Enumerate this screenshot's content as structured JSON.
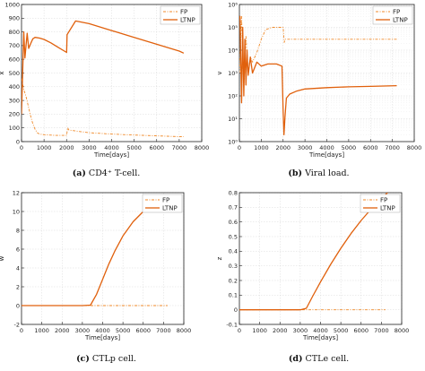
{
  "colors": {
    "fp": "#f08a2a",
    "ltnp": "#e0600c",
    "axis": "#222222",
    "grid": "#d9d9d9"
  },
  "captions": [
    {
      "tag": "(a)",
      "text": "CD4⁺ T-cell."
    },
    {
      "tag": "(b)",
      "text": "Viral load."
    },
    {
      "tag": "(c)",
      "text": "CTLp cell."
    },
    {
      "tag": "(d)",
      "text": "CTLe cell."
    }
  ],
  "chart_data": [
    {
      "type": "line",
      "xlabel": "Time[days]",
      "ylabel": "x",
      "xlim": [
        0,
        8000
      ],
      "ylim": [
        0,
        1000
      ],
      "yscale": "linear",
      "grid": true,
      "legend": "top-right",
      "xticks": [
        0,
        1000,
        2000,
        3000,
        4000,
        5000,
        6000,
        7000,
        8000
      ],
      "yticks": [
        0,
        100,
        200,
        300,
        400,
        500,
        600,
        700,
        800,
        900,
        1000
      ],
      "series": [
        {
          "name": "FP",
          "style": "dashdot",
          "x": [
            0,
            100,
            200,
            300,
            400,
            500,
            600,
            700,
            800,
            1000,
            1500,
            2000,
            2050,
            2100,
            2500,
            3000,
            4000,
            5000,
            6000,
            7000,
            7200
          ],
          "y": [
            460,
            380,
            330,
            260,
            190,
            130,
            90,
            65,
            55,
            50,
            45,
            45,
            100,
            85,
            75,
            65,
            55,
            48,
            42,
            36,
            35
          ]
        },
        {
          "name": "LTNP",
          "style": "solid",
          "x": [
            0,
            100,
            150,
            250,
            320,
            420,
            500,
            600,
            800,
            1000,
            1300,
            1600,
            2000,
            2020,
            2400,
            3000,
            4000,
            5000,
            6000,
            7000,
            7200
          ],
          "y": [
            200,
            800,
            610,
            790,
            680,
            720,
            750,
            760,
            755,
            745,
            720,
            690,
            650,
            780,
            880,
            860,
            810,
            760,
            710,
            660,
            645
          ]
        }
      ]
    },
    {
      "type": "line",
      "xlabel": "Time[days]",
      "ylabel": "v",
      "xlim": [
        0,
        8000
      ],
      "ylim": [
        1,
        1000000
      ],
      "yscale": "log",
      "grid": true,
      "legend": "top-right",
      "xticks": [
        0,
        1000,
        2000,
        3000,
        4000,
        5000,
        6000,
        7000,
        8000
      ],
      "yticks": [
        1,
        10,
        100,
        1000,
        10000,
        100000,
        1000000
      ],
      "ytick_labels": [
        "10⁰",
        "10¹",
        "10²",
        "10³",
        "10⁴",
        "10⁵",
        "10⁶"
      ],
      "series": [
        {
          "name": "FP",
          "style": "dashdot",
          "x": [
            0,
            100,
            200,
            300,
            400,
            500,
            600,
            800,
            1000,
            1200,
            1500,
            2000,
            2050,
            2100,
            3000,
            4000,
            5000,
            6000,
            7200
          ],
          "y": [
            1000,
            300000,
            200,
            40000,
            1000,
            5000,
            3000,
            8000,
            30000,
            80000,
            100000,
            100000,
            22000,
            30000,
            30000,
            30000,
            30000,
            30000,
            30000
          ]
        },
        {
          "name": "LTNP",
          "style": "solid",
          "x": [
            0,
            30,
            100,
            150,
            200,
            250,
            300,
            350,
            400,
            500,
            600,
            800,
            1000,
            1300,
            1700,
            1950,
            2000,
            2040,
            2080,
            2150,
            2300,
            2600,
            3000,
            4000,
            5000,
            6000,
            7200
          ],
          "y": [
            200000,
            300000,
            50,
            100000,
            100,
            30000,
            300,
            10000,
            800,
            5000,
            1000,
            3000,
            2000,
            2500,
            2500,
            2000,
            20,
            2,
            10,
            80,
            120,
            160,
            200,
            230,
            250,
            260,
            280
          ]
        }
      ]
    },
    {
      "type": "line",
      "xlabel": "Time[days]",
      "ylabel": "w",
      "xlim": [
        0,
        8000
      ],
      "ylim": [
        -2,
        12
      ],
      "yscale": "linear",
      "grid": true,
      "legend": "top-right",
      "xticks": [
        0,
        1000,
        2000,
        3000,
        4000,
        5000,
        6000,
        7000,
        8000
      ],
      "yticks": [
        -2,
        0,
        2,
        4,
        6,
        8,
        10,
        12
      ],
      "series": [
        {
          "name": "FP",
          "style": "dashdot",
          "x": [
            0,
            1000,
            2000,
            3000,
            4000,
            5000,
            6000,
            7200
          ],
          "y": [
            0,
            0,
            0,
            0,
            0,
            0,
            0,
            0
          ]
        },
        {
          "name": "LTNP",
          "style": "solid",
          "x": [
            0,
            3000,
            3400,
            3700,
            4000,
            4300,
            4600,
            5000,
            5500,
            6000,
            6500,
            7000,
            7200
          ],
          "y": [
            0,
            0,
            0.05,
            1.2,
            2.8,
            4.4,
            5.8,
            7.4,
            8.9,
            10.0,
            10.9,
            11.5,
            11.7
          ]
        }
      ]
    },
    {
      "type": "line",
      "xlabel": "Time[days]",
      "ylabel": "z",
      "xlim": [
        0,
        8000
      ],
      "ylim": [
        -0.1,
        0.8
      ],
      "yscale": "linear",
      "grid": true,
      "legend": "top-right",
      "xticks": [
        0,
        1000,
        2000,
        3000,
        4000,
        5000,
        6000,
        7000,
        8000
      ],
      "yticks": [
        -0.1,
        0,
        0.1,
        0.2,
        0.3,
        0.4,
        0.5,
        0.6,
        0.7,
        0.8
      ],
      "series": [
        {
          "name": "FP",
          "style": "dashdot",
          "x": [
            0,
            1000,
            2000,
            3000,
            4000,
            5000,
            6000,
            7200
          ],
          "y": [
            0,
            0,
            0,
            0,
            0,
            0,
            0,
            0
          ]
        },
        {
          "name": "LTNP",
          "style": "solid",
          "x": [
            0,
            3000,
            3300,
            3600,
            4000,
            4500,
            5000,
            5500,
            6000,
            6500,
            7000,
            7300
          ],
          "y": [
            0,
            0,
            0.01,
            0.09,
            0.19,
            0.31,
            0.42,
            0.52,
            0.61,
            0.69,
            0.76,
            0.8
          ]
        }
      ]
    }
  ]
}
